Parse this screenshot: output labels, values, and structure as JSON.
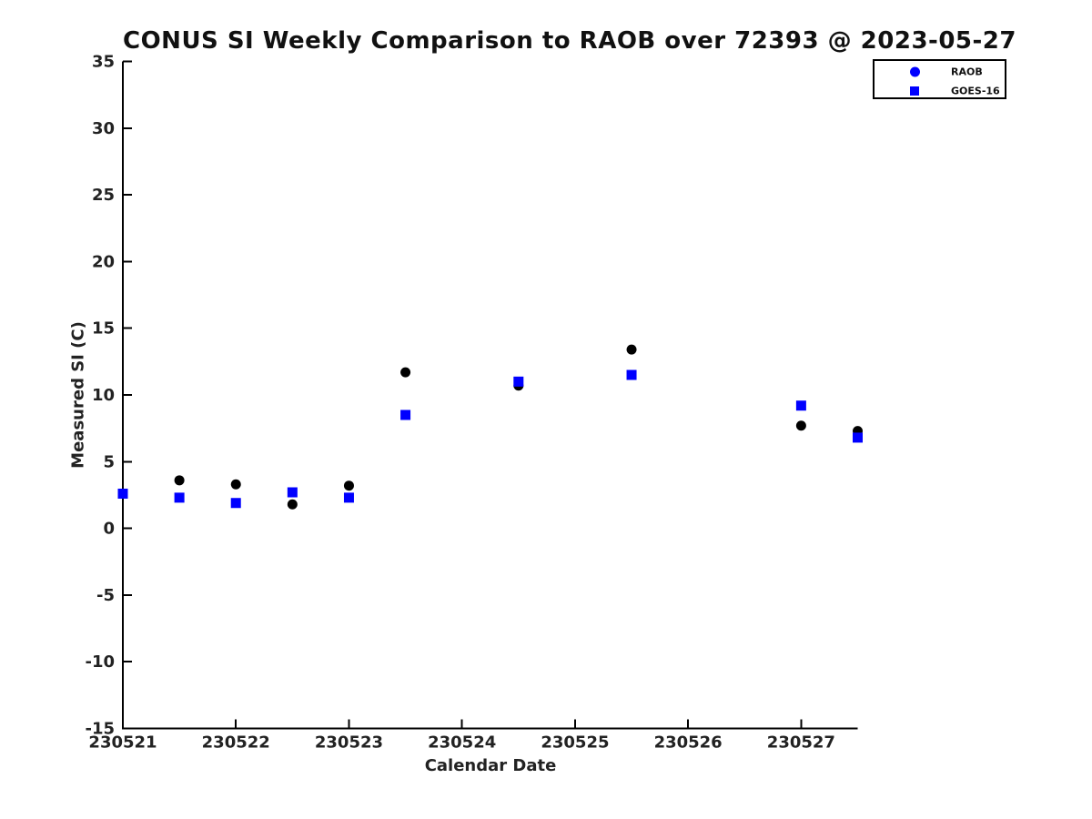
{
  "figure": {
    "background_color": "#ffffff",
    "axis_color": "#000000",
    "text_color": "#222222"
  },
  "chart_data": {
    "type": "scatter",
    "title": "CONUS SI Weekly Comparison to RAOB over 72393 @ 2023-05-27",
    "xlabel": "Calendar Date",
    "ylabel": "Measured SI (C)",
    "xlim": [
      230521,
      230527.5
    ],
    "ylim": [
      -15,
      35
    ],
    "xticks": [
      230521,
      230522,
      230523,
      230524,
      230525,
      230526,
      230527
    ],
    "yticks": [
      -15,
      -10,
      -5,
      0,
      5,
      10,
      15,
      20,
      25,
      30,
      35
    ],
    "grid": false,
    "legend_position": "top-right",
    "series": [
      {
        "name": "RAOB",
        "marker": "circle",
        "plot_marker_color": "#000000",
        "legend_marker_color": "#0000ff",
        "points": [
          {
            "x": 230521.0,
            "y": 2.6
          },
          {
            "x": 230521.5,
            "y": 3.6
          },
          {
            "x": 230522.0,
            "y": 3.3
          },
          {
            "x": 230522.5,
            "y": 1.8
          },
          {
            "x": 230523.0,
            "y": 3.2
          },
          {
            "x": 230523.5,
            "y": 11.7
          },
          {
            "x": 230524.5,
            "y": 10.7
          },
          {
            "x": 230525.5,
            "y": 13.4
          },
          {
            "x": 230527.0,
            "y": 7.7
          },
          {
            "x": 230527.5,
            "y": 7.3
          }
        ]
      },
      {
        "name": "GOES-16",
        "marker": "square",
        "plot_marker_color": "#0000ff",
        "legend_marker_color": "#0000ff",
        "points": [
          {
            "x": 230521.0,
            "y": 2.6
          },
          {
            "x": 230521.5,
            "y": 2.3
          },
          {
            "x": 230522.0,
            "y": 1.9
          },
          {
            "x": 230522.5,
            "y": 2.7
          },
          {
            "x": 230523.0,
            "y": 2.3
          },
          {
            "x": 230523.5,
            "y": 8.5
          },
          {
            "x": 230524.5,
            "y": 11.0
          },
          {
            "x": 230525.5,
            "y": 11.5
          },
          {
            "x": 230527.0,
            "y": 9.2
          },
          {
            "x": 230527.5,
            "y": 6.8
          }
        ]
      }
    ]
  }
}
